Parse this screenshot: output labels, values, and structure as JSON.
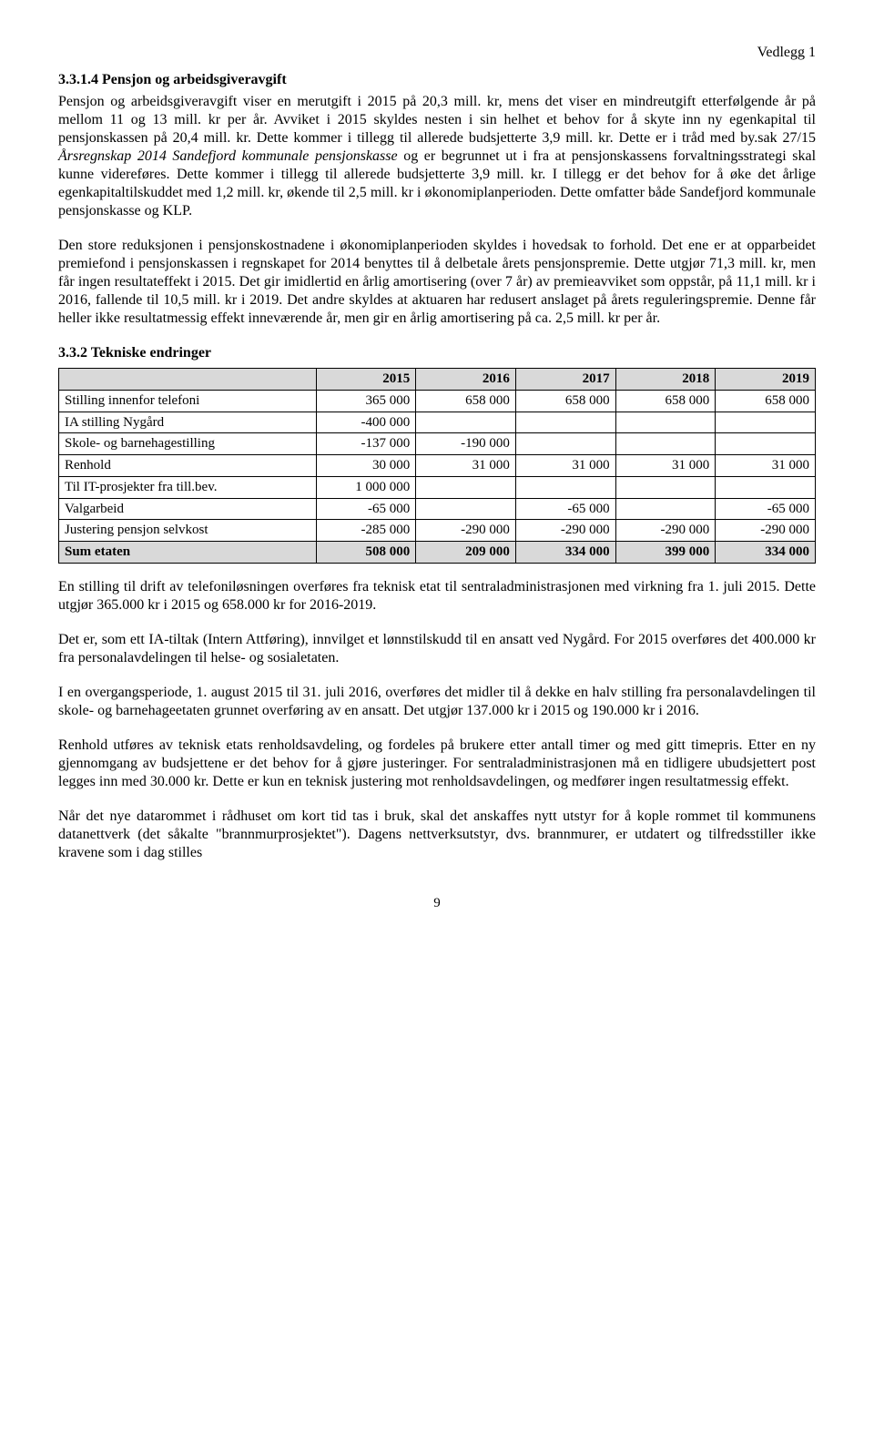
{
  "header": {
    "attachment": "Vedlegg 1"
  },
  "s1": {
    "heading": "3.3.1.4  Pensjon og arbeidsgiveravgift",
    "p1a": "Pensjon og arbeidsgiveravgift viser en merutgift i 2015 på 20,3 mill. kr, mens det viser en mindreutgift etterfølgende år på mellom 11 og 13 mill. kr per år. Avviket i 2015 skyldes nesten i sin helhet et behov for å skyte inn ny egenkapital til pensjonskassen på 20,4 mill. kr. Dette kommer i tillegg til allerede budsjetterte 3,9 mill. kr. Dette er i tråd med by.sak 27/15 ",
    "p1italic": "Årsregnskap 2014 Sandefjord kommunale pensjonskasse",
    "p1b": " og er begrunnet ut i fra at pensjonskassens forvaltningsstrategi skal kunne videreføres. Dette kommer i tillegg til allerede budsjetterte 3,9 mill. kr. I tillegg er det behov for å øke det årlige egenkapitaltilskuddet med 1,2 mill. kr, økende til 2,5 mill. kr i økonomiplanperioden. Dette omfatter både Sandefjord kommunale pensjonskasse og KLP.",
    "p2": "Den store reduksjonen i pensjonskostnadene i økonomiplanperioden skyldes i hovedsak to forhold. Det ene er at opparbeidet premiefond i pensjonskassen i regnskapet for 2014 benyttes til å delbetale årets pensjonspremie. Dette utgjør 71,3 mill. kr, men får ingen resultateffekt i 2015. Det gir imidlertid en årlig amortisering (over 7 år) av premieavviket som oppstår, på 11,1 mill. kr i 2016, fallende til 10,5 mill. kr i 2019. Det andre skyldes at aktuaren har redusert anslaget på årets reguleringspremie. Denne får heller ikke resultatmessig effekt inneværende år, men gir en årlig amortisering på ca. 2,5 mill. kr per år."
  },
  "s2": {
    "heading": "3.3.2  Tekniske endringer",
    "table": {
      "columns": [
        "",
        "2015",
        "2016",
        "2017",
        "2018",
        "2019"
      ],
      "col_widths": [
        "34%",
        "13.2%",
        "13.2%",
        "13.2%",
        "13.2%",
        "13.2%"
      ],
      "header_bg": "#d9d9d9",
      "border_color": "#000000",
      "rows": [
        {
          "label": "Stilling innenfor telefoni",
          "cells": [
            "365 000",
            "658 000",
            "658 000",
            "658 000",
            "658 000"
          ]
        },
        {
          "label": "IA stilling Nygård",
          "cells": [
            "-400 000",
            "",
            "",
            "",
            ""
          ]
        },
        {
          "label": "Skole- og barnehagestilling",
          "cells": [
            "-137 000",
            "-190 000",
            "",
            "",
            ""
          ]
        },
        {
          "label": "Renhold",
          "cells": [
            "30 000",
            "31 000",
            "31 000",
            "31 000",
            "31 000"
          ]
        },
        {
          "label": "Til IT-prosjekter fra till.bev.",
          "cells": [
            "1 000 000",
            "",
            "",
            "",
            ""
          ]
        },
        {
          "label": "Valgarbeid",
          "cells": [
            "-65 000",
            "",
            "-65 000",
            "",
            "-65 000"
          ]
        },
        {
          "label": "Justering pensjon selvkost",
          "cells": [
            "-285 000",
            "-290 000",
            "-290 000",
            "-290 000",
            "-290 000"
          ]
        }
      ],
      "sum": {
        "label": "Sum etaten",
        "cells": [
          "508 000",
          "209 000",
          "334 000",
          "399 000",
          "334 000"
        ]
      }
    },
    "p1": "En stilling til drift av telefoniløsningen overføres fra teknisk etat til sentraladministrasjonen med virkning fra 1. juli 2015. Dette utgjør 365.000 kr i 2015 og 658.000 kr for 2016-2019.",
    "p2": "Det er, som ett IA-tiltak (Intern Attføring), innvilget et lønnstilskudd til en ansatt ved Nygård. For 2015 overføres det 400.000 kr fra personalavdelingen til helse- og sosialetaten.",
    "p3": "I en overgangsperiode, 1. august 2015 til 31. juli 2016, overføres det midler til å dekke en halv stilling fra personalavdelingen til skole- og barnehageetaten grunnet overføring av en ansatt. Det utgjør 137.000 kr i 2015 og 190.000 kr i 2016.",
    "p4": "Renhold utføres av teknisk etats renholdsavdeling, og fordeles på brukere etter antall timer og med gitt timepris. Etter en ny gjennomgang av budsjettene er det behov for å gjøre justeringer. For sentraladministrasjonen må en tidligere ubudsjettert post legges inn med 30.000 kr. Dette er kun en teknisk justering mot renholdsavdelingen, og medfører ingen resultatmessig effekt.",
    "p5": "Når det nye datarommet i rådhuset om kort tid tas i bruk, skal det anskaffes nytt utstyr for å kople rommet til kommunens datanettverk (det såkalte \"brannmurprosjektet\"). Dagens nettverksutstyr, dvs. brannmurer, er utdatert og tilfredsstiller ikke kravene som i dag stilles"
  },
  "page": {
    "num": "9"
  }
}
